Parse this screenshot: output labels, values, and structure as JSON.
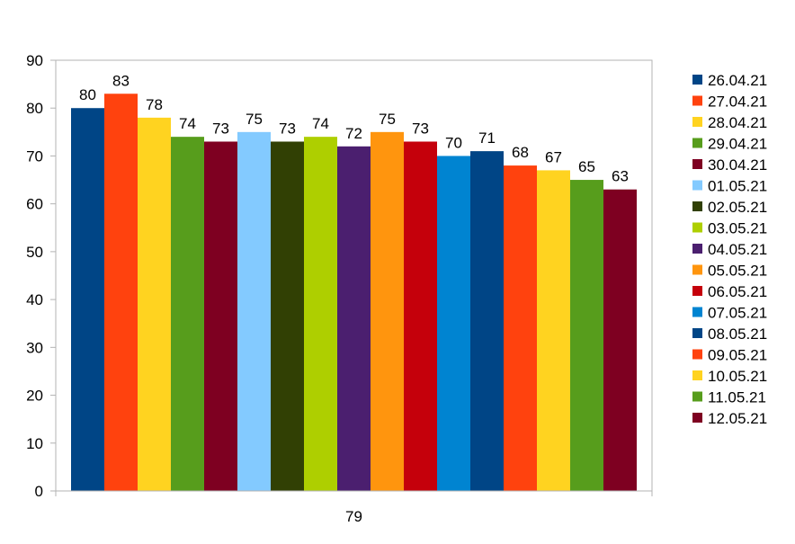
{
  "chart_data": {
    "type": "bar",
    "categories": [
      "79"
    ],
    "series": [
      {
        "name": "26.04.21",
        "values": [
          80
        ],
        "color": "#004586"
      },
      {
        "name": "27.04.21",
        "values": [
          83
        ],
        "color": "#ff420e"
      },
      {
        "name": "28.04.21",
        "values": [
          78
        ],
        "color": "#ffd320"
      },
      {
        "name": "29.04.21",
        "values": [
          74
        ],
        "color": "#579d1c"
      },
      {
        "name": "30.04.21",
        "values": [
          73
        ],
        "color": "#7e0021"
      },
      {
        "name": "01.05.21",
        "values": [
          75
        ],
        "color": "#83caff"
      },
      {
        "name": "02.05.21",
        "values": [
          73
        ],
        "color": "#314004"
      },
      {
        "name": "03.05.21",
        "values": [
          74
        ],
        "color": "#aecf00"
      },
      {
        "name": "04.05.21",
        "values": [
          72
        ],
        "color": "#4b1f6f"
      },
      {
        "name": "05.05.21",
        "values": [
          75
        ],
        "color": "#ff950e"
      },
      {
        "name": "06.05.21",
        "values": [
          73
        ],
        "color": "#c5000b"
      },
      {
        "name": "07.05.21",
        "values": [
          70
        ],
        "color": "#0084d1"
      },
      {
        "name": "08.05.21",
        "values": [
          71
        ],
        "color": "#004586"
      },
      {
        "name": "09.05.21",
        "values": [
          68
        ],
        "color": "#ff420e"
      },
      {
        "name": "10.05.21",
        "values": [
          67
        ],
        "color": "#ffd320"
      },
      {
        "name": "11.05.21",
        "values": [
          65
        ],
        "color": "#579d1c"
      },
      {
        "name": "12.05.21",
        "values": [
          63
        ],
        "color": "#7e0021"
      }
    ],
    "title": "",
    "xlabel": "",
    "ylabel": "",
    "ylim": [
      0,
      90
    ],
    "yticks": [
      0,
      10,
      20,
      30,
      40,
      50,
      60,
      70,
      80,
      90
    ],
    "grid": false,
    "data_labels": true,
    "legend": "right"
  }
}
